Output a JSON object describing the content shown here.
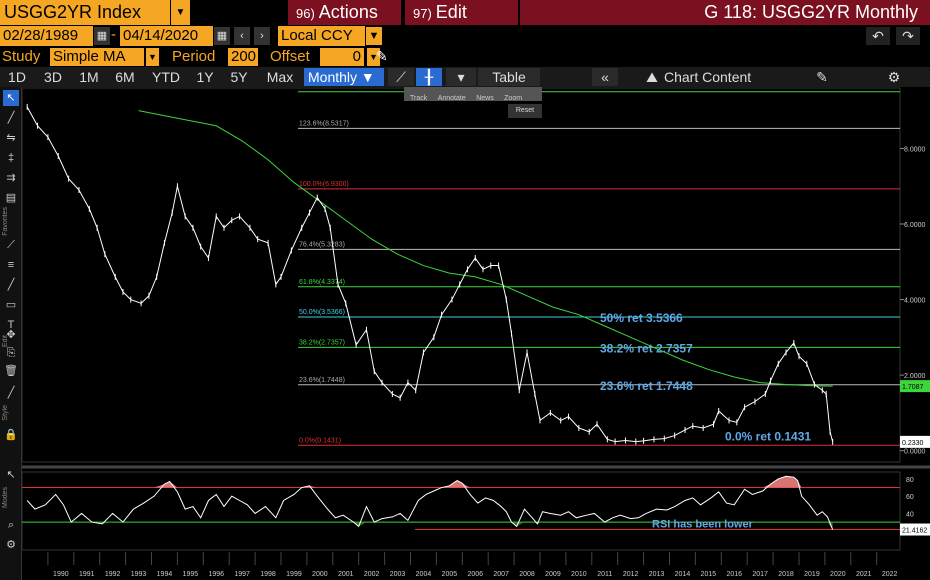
{
  "header": {
    "ticker": "USGG2YR Index",
    "actions_num": "96)",
    "actions_label": "Actions",
    "edit_num": "97)",
    "edit_label": "Edit",
    "title": "G 118: USGG2YR Monthly"
  },
  "dates": {
    "start": "02/28/1989",
    "sep": "-",
    "end": "04/14/2020",
    "currency": "Local CCY"
  },
  "study": {
    "label": "Study",
    "value": "Simple MA",
    "period_label": "Period",
    "period": "200",
    "offset_label": "Offset",
    "offset": "0"
  },
  "toolbar": {
    "ranges": [
      "1D",
      "3D",
      "1M",
      "6M",
      "YTD",
      "1Y",
      "5Y",
      "Max"
    ],
    "frequency": "Monthly ▼",
    "table": "Table",
    "chart_content": "Chart Content"
  },
  "mini_toolbar": {
    "items": [
      "Track",
      "Annotate",
      "News",
      "Zoom"
    ],
    "reset": "Reset"
  },
  "fib_levels": [
    {
      "label": "123.6%(8.5317)"
    },
    {
      "label": "100.0%(6.9300)"
    },
    {
      "label": "76.4%(5.3283)"
    },
    {
      "label": "61.8%(4.3374)"
    },
    {
      "label": "50.0%(3.5366)"
    },
    {
      "label": "38.2%(2.7357)"
    },
    {
      "label": "23.6%(1.7448)"
    },
    {
      "label": "0.0%(0.1431)"
    }
  ],
  "annotations": {
    "a50": "50% ret 3.5366",
    "a382": "38.2% ret 2.7357",
    "a236": "23.6% ret 1.7448",
    "a0": "0.0% ret 0.1431",
    "rsi_note": "RSI has been lower"
  },
  "price_axis": {
    "ticks": [
      "8.0000",
      "6.0000",
      "4.0000",
      "2.0000",
      "0.0000"
    ],
    "last_ma": "1.7087",
    "last_price": "0.2330"
  },
  "rsi_axis": {
    "ticks": [
      "80",
      "60",
      "40",
      "20"
    ],
    "last": "21.4162"
  },
  "x_axis": {
    "years": [
      "1990",
      "1991",
      "1992",
      "1993",
      "1994",
      "1995",
      "1996",
      "1997",
      "1998",
      "1999",
      "2000",
      "2001",
      "2002",
      "2003",
      "2004",
      "2005",
      "2006",
      "2007",
      "2008",
      "2009",
      "2010",
      "2011",
      "2012",
      "2013",
      "2014",
      "2015",
      "2016",
      "2017",
      "2018",
      "2019",
      "2020",
      "2021",
      "2022"
    ]
  },
  "colors": {
    "orange": "#f5a623",
    "maroon": "#7a1020",
    "blue": "#2a6bd1",
    "ma": "#3cd63c",
    "annotation": "#5fa8e8",
    "fib_red": "#e03030",
    "fib_green": "#3cd63c",
    "fib_cyan": "#40d0e0",
    "fib_gray": "#bbbbbb",
    "rsi_fill": "#f08080"
  },
  "chart_data": {
    "type": "line",
    "series": [
      {
        "values": [
          [
            1989.2,
            9.1
          ],
          [
            1989.6,
            8.6
          ],
          [
            1990.0,
            8.3
          ],
          [
            1990.4,
            7.8
          ],
          [
            1990.8,
            7.2
          ],
          [
            1991.2,
            6.9
          ],
          [
            1991.6,
            6.4
          ],
          [
            1991.9,
            5.9
          ],
          [
            1992.2,
            5.2
          ],
          [
            1992.6,
            4.6
          ],
          [
            1992.9,
            4.2
          ],
          [
            1993.2,
            4.0
          ],
          [
            1993.6,
            3.9
          ],
          [
            1993.9,
            4.1
          ],
          [
            1994.2,
            4.6
          ],
          [
            1994.5,
            5.5
          ],
          [
            1994.8,
            6.3
          ],
          [
            1995.0,
            7.0
          ],
          [
            1995.3,
            6.2
          ],
          [
            1995.6,
            5.9
          ],
          [
            1995.9,
            5.4
          ],
          [
            1996.2,
            5.1
          ],
          [
            1996.5,
            6.2
          ],
          [
            1996.8,
            5.9
          ],
          [
            1997.1,
            6.1
          ],
          [
            1997.4,
            6.2
          ],
          [
            1997.8,
            5.9
          ],
          [
            1998.1,
            5.6
          ],
          [
            1998.5,
            5.5
          ],
          [
            1998.8,
            4.4
          ],
          [
            1999.0,
            4.6
          ],
          [
            1999.4,
            5.3
          ],
          [
            1999.8,
            5.9
          ],
          [
            2000.1,
            6.3
          ],
          [
            2000.4,
            6.7
          ],
          [
            2000.7,
            6.4
          ],
          [
            2000.9,
            5.9
          ],
          [
            2001.2,
            4.4
          ],
          [
            2001.5,
            3.9
          ],
          [
            2001.9,
            2.8
          ],
          [
            2002.3,
            3.2
          ],
          [
            2002.6,
            2.1
          ],
          [
            2002.9,
            1.8
          ],
          [
            2003.3,
            1.5
          ],
          [
            2003.6,
            1.4
          ],
          [
            2003.9,
            1.8
          ],
          [
            2004.2,
            1.6
          ],
          [
            2004.5,
            2.6
          ],
          [
            2004.9,
            3.0
          ],
          [
            2005.2,
            3.6
          ],
          [
            2005.6,
            4.0
          ],
          [
            2005.9,
            4.4
          ],
          [
            2006.2,
            4.8
          ],
          [
            2006.5,
            5.1
          ],
          [
            2006.8,
            4.8
          ],
          [
            2007.1,
            4.9
          ],
          [
            2007.4,
            4.9
          ],
          [
            2007.7,
            4.0
          ],
          [
            2007.9,
            3.1
          ],
          [
            2008.2,
            1.6
          ],
          [
            2008.5,
            2.6
          ],
          [
            2008.8,
            1.5
          ],
          [
            2009.0,
            0.8
          ],
          [
            2009.4,
            1.0
          ],
          [
            2009.8,
            0.8
          ],
          [
            2010.1,
            0.9
          ],
          [
            2010.5,
            0.6
          ],
          [
            2010.9,
            0.5
          ],
          [
            2011.2,
            0.7
          ],
          [
            2011.6,
            0.3
          ],
          [
            2011.9,
            0.24
          ],
          [
            2012.3,
            0.27
          ],
          [
            2012.7,
            0.24
          ],
          [
            2013.0,
            0.26
          ],
          [
            2013.4,
            0.3
          ],
          [
            2013.8,
            0.32
          ],
          [
            2014.2,
            0.4
          ],
          [
            2014.6,
            0.55
          ],
          [
            2014.9,
            0.65
          ],
          [
            2015.3,
            0.6
          ],
          [
            2015.7,
            0.7
          ],
          [
            2015.9,
            1.05
          ],
          [
            2016.3,
            0.8
          ],
          [
            2016.6,
            0.75
          ],
          [
            2016.9,
            1.15
          ],
          [
            2017.3,
            1.3
          ],
          [
            2017.7,
            1.5
          ],
          [
            2017.9,
            1.85
          ],
          [
            2018.2,
            2.3
          ],
          [
            2018.5,
            2.6
          ],
          [
            2018.8,
            2.85
          ],
          [
            2019.0,
            2.5
          ],
          [
            2019.3,
            2.3
          ],
          [
            2019.6,
            1.75
          ],
          [
            2019.9,
            1.6
          ],
          [
            2020.05,
            1.5
          ],
          [
            2020.2,
            0.5
          ],
          [
            2020.3,
            0.233
          ]
        ]
      },
      {
        "values": [
          [
            1993.5,
            9.0
          ],
          [
            1995.0,
            8.8
          ],
          [
            1996.5,
            8.6
          ],
          [
            1997.5,
            8.2
          ],
          [
            1998.5,
            7.7
          ],
          [
            1999.5,
            7.1
          ],
          [
            2000.5,
            6.6
          ],
          [
            2001.5,
            6.1
          ],
          [
            2002.5,
            5.6
          ],
          [
            2003.5,
            5.2
          ],
          [
            2004.5,
            4.9
          ],
          [
            2005.5,
            4.7
          ],
          [
            2006.5,
            4.6
          ],
          [
            2007.5,
            4.4
          ],
          [
            2008.5,
            4.1
          ],
          [
            2009.5,
            3.8
          ],
          [
            2010.5,
            3.6
          ],
          [
            2011.5,
            3.3
          ],
          [
            2012.5,
            3.0
          ],
          [
            2013.5,
            2.7
          ],
          [
            2014.5,
            2.4
          ],
          [
            2015.5,
            2.15
          ],
          [
            2016.5,
            1.95
          ],
          [
            2017.5,
            1.8
          ],
          [
            2018.5,
            1.75
          ],
          [
            2019.5,
            1.72
          ],
          [
            2020.3,
            1.7087
          ]
        ]
      }
    ],
    "fib_values": [
      8.5317,
      6.93,
      5.3283,
      4.3374,
      3.5366,
      2.7357,
      1.7448,
      0.1431
    ],
    "ylim": [
      -0.3,
      9.6
    ],
    "xlim": [
      1989.0,
      2022.9
    ],
    "rsi": {
      "ylim": [
        0,
        88
      ],
      "upper": 70,
      "lower": 30,
      "values": [
        [
          1989.2,
          55
        ],
        [
          1989.5,
          45
        ],
        [
          1989.9,
          50
        ],
        [
          1990.3,
          62
        ],
        [
          1990.6,
          50
        ],
        [
          1990.9,
          30
        ],
        [
          1991.3,
          40
        ],
        [
          1991.7,
          30
        ],
        [
          1992.1,
          28
        ],
        [
          1992.5,
          40
        ],
        [
          1992.9,
          30
        ],
        [
          1993.3,
          45
        ],
        [
          1993.7,
          52
        ],
        [
          1994.1,
          60
        ],
        [
          1994.5,
          74
        ],
        [
          1994.7,
          77
        ],
        [
          1995.0,
          65
        ],
        [
          1995.3,
          45
        ],
        [
          1995.6,
          48
        ],
        [
          1995.9,
          35
        ],
        [
          1996.2,
          55
        ],
        [
          1996.5,
          62
        ],
        [
          1996.8,
          48
        ],
        [
          1997.1,
          60
        ],
        [
          1997.4,
          55
        ],
        [
          1997.7,
          50
        ],
        [
          1998.0,
          40
        ],
        [
          1998.4,
          48
        ],
        [
          1998.8,
          35
        ],
        [
          1999.1,
          55
        ],
        [
          1999.5,
          62
        ],
        [
          1999.8,
          70
        ],
        [
          2000.1,
          72
        ],
        [
          2000.4,
          60
        ],
        [
          2000.8,
          45
        ],
        [
          2001.1,
          35
        ],
        [
          2001.4,
          38
        ],
        [
          2001.8,
          30
        ],
        [
          2002.0,
          25
        ],
        [
          2002.3,
          48
        ],
        [
          2002.6,
          30
        ],
        [
          2002.9,
          34
        ],
        [
          2003.3,
          36
        ],
        [
          2003.6,
          40
        ],
        [
          2003.9,
          32
        ],
        [
          2004.3,
          55
        ],
        [
          2004.6,
          62
        ],
        [
          2004.9,
          66
        ],
        [
          2005.2,
          70
        ],
        [
          2005.5,
          72
        ],
        [
          2005.8,
          78
        ],
        [
          2006.0,
          75
        ],
        [
          2006.3,
          62
        ],
        [
          2006.6,
          52
        ],
        [
          2006.9,
          58
        ],
        [
          2007.2,
          55
        ],
        [
          2007.5,
          48
        ],
        [
          2007.7,
          42
        ],
        [
          2007.9,
          30
        ],
        [
          2008.1,
          25
        ],
        [
          2008.4,
          45
        ],
        [
          2008.7,
          35
        ],
        [
          2008.9,
          28
        ],
        [
          2009.1,
          42
        ],
        [
          2009.4,
          40
        ],
        [
          2009.8,
          38
        ],
        [
          2010.1,
          42
        ],
        [
          2010.4,
          35
        ],
        [
          2010.8,
          38
        ],
        [
          2011.1,
          40
        ],
        [
          2011.5,
          30
        ],
        [
          2011.8,
          35
        ],
        [
          2012.1,
          38
        ],
        [
          2012.5,
          34
        ],
        [
          2012.8,
          35
        ],
        [
          2013.1,
          40
        ],
        [
          2013.5,
          45
        ],
        [
          2013.9,
          44
        ],
        [
          2014.2,
          48
        ],
        [
          2014.6,
          55
        ],
        [
          2014.9,
          58
        ],
        [
          2015.2,
          50
        ],
        [
          2015.6,
          58
        ],
        [
          2015.9,
          65
        ],
        [
          2016.2,
          52
        ],
        [
          2016.5,
          50
        ],
        [
          2016.9,
          68
        ],
        [
          2017.2,
          62
        ],
        [
          2017.6,
          66
        ],
        [
          2017.9,
          74
        ],
        [
          2018.2,
          80
        ],
        [
          2018.5,
          83
        ],
        [
          2018.8,
          82
        ],
        [
          2018.95,
          78
        ],
        [
          2019.1,
          60
        ],
        [
          2019.4,
          50
        ],
        [
          2019.7,
          38
        ],
        [
          2019.9,
          42
        ],
        [
          2020.1,
          36
        ],
        [
          2020.3,
          21.4
        ]
      ]
    }
  }
}
